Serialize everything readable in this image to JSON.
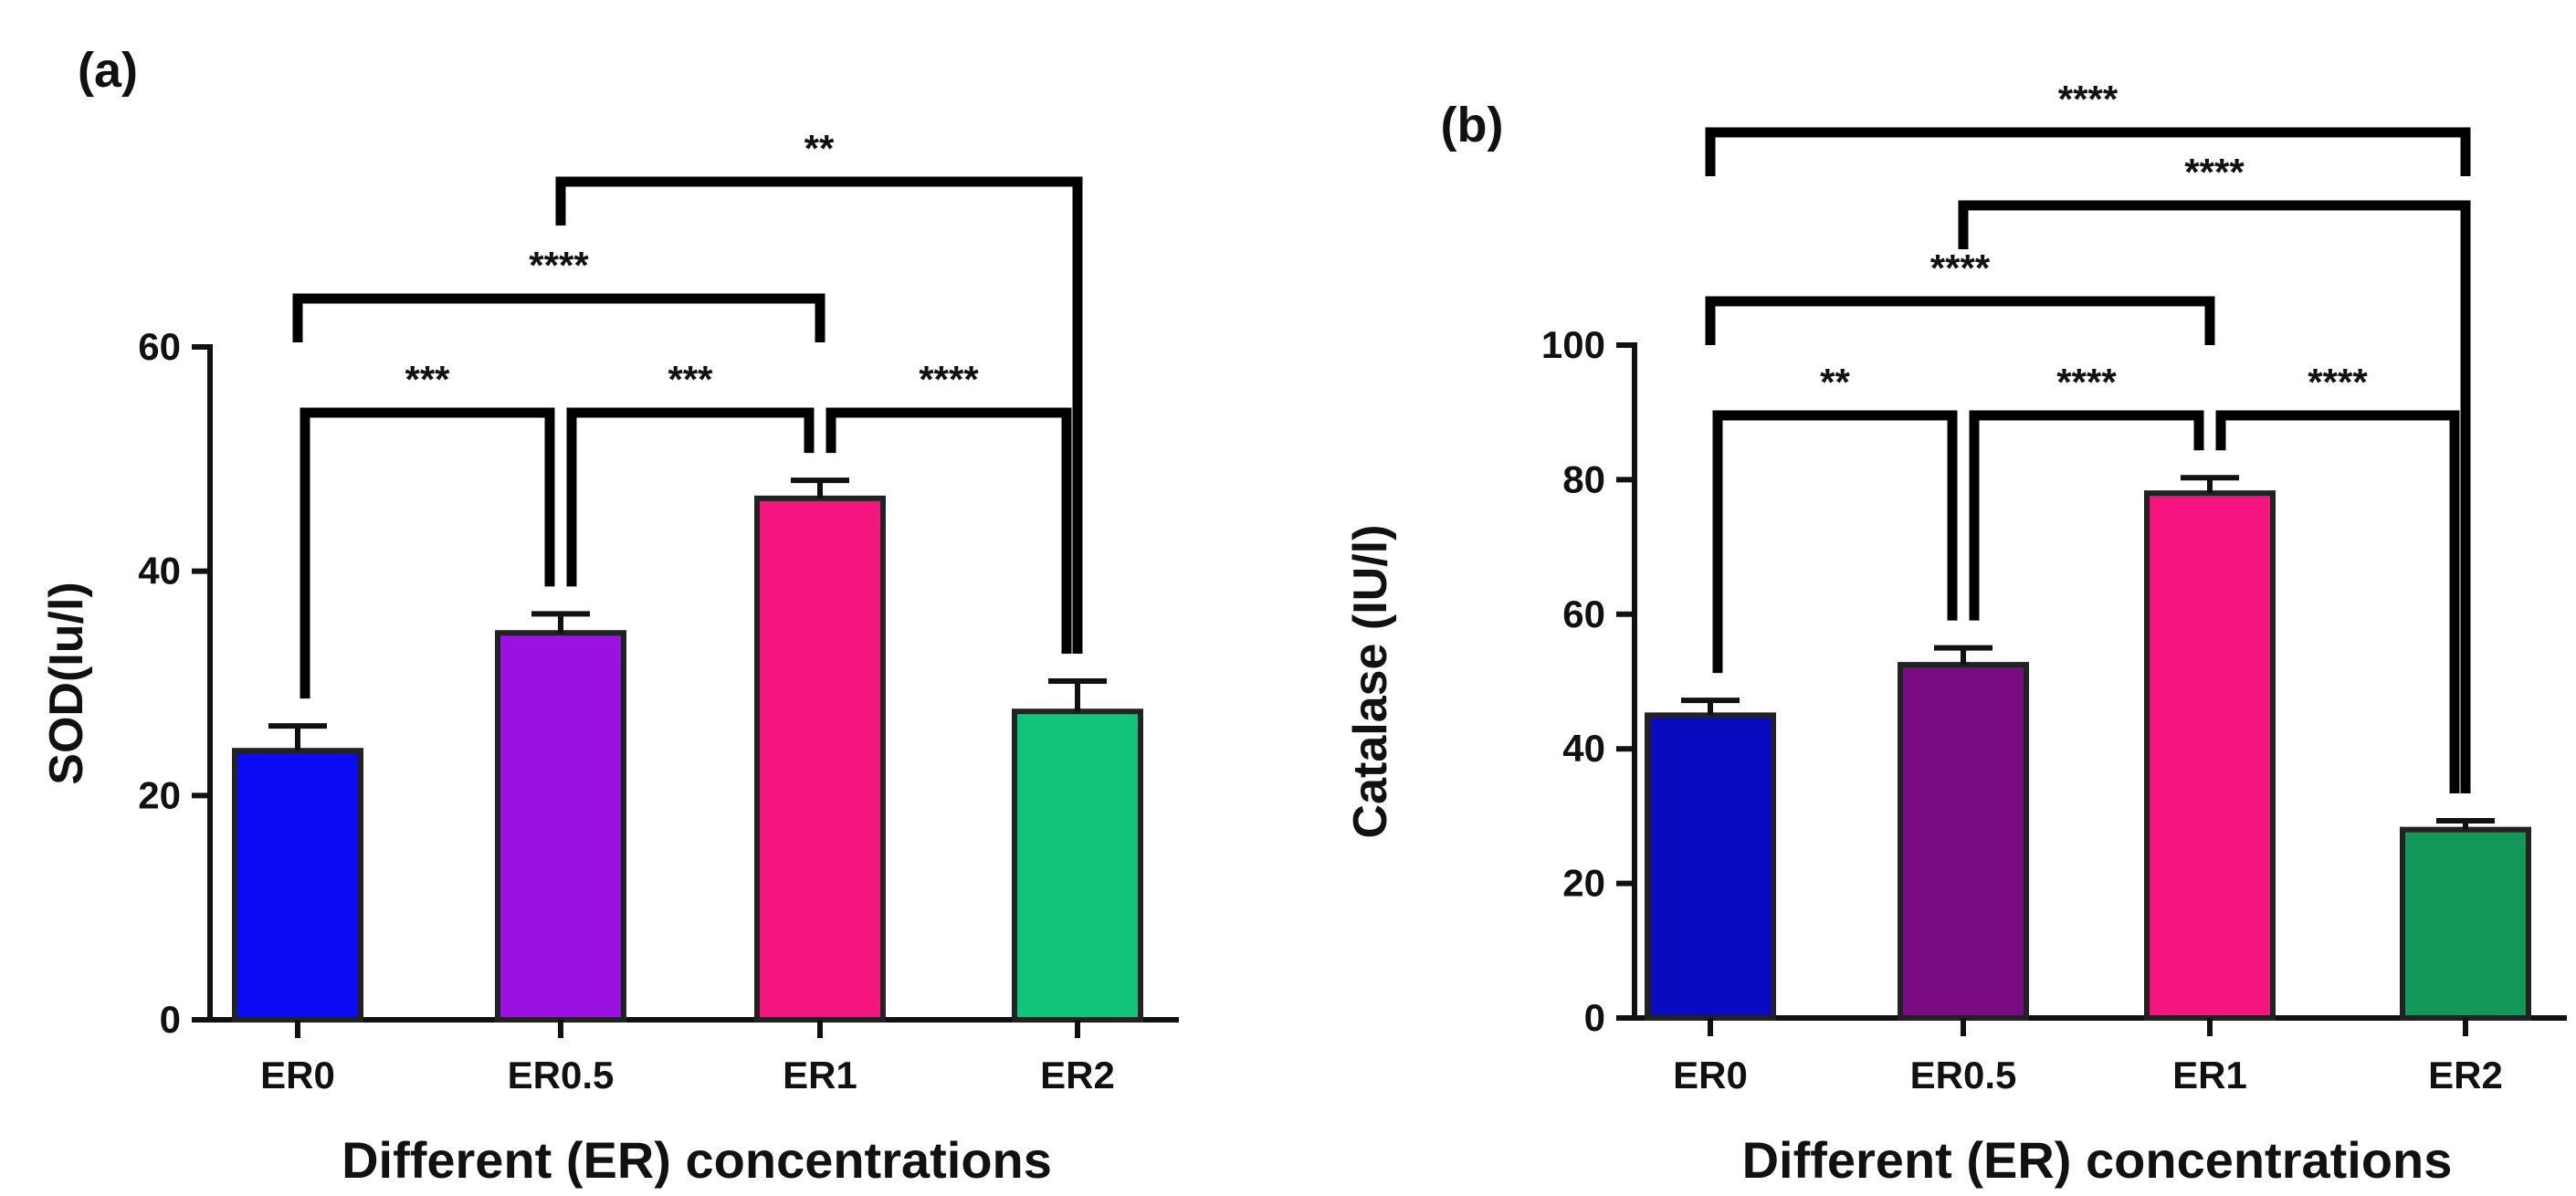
{
  "charts": [
    {
      "panel_label": "(a)",
      "type": "bar",
      "ylabel": "SOD(Iu/l)",
      "xlabel": "Different (ER) concentrations",
      "yticks": [
        0,
        20,
        40,
        60
      ],
      "ylim": [
        0,
        60
      ],
      "bars": [
        {
          "category": "ER0",
          "value": 24,
          "error": 2.2,
          "color": "#0a0af5"
        },
        {
          "category": "ER0.5",
          "value": 34.5,
          "error": 1.7,
          "color": "#9a12e0"
        },
        {
          "category": "ER1",
          "value": 46.5,
          "error": 1.6,
          "color": "#f5157e"
        },
        {
          "category": "ER2",
          "value": 27.5,
          "error": 2.7,
          "color": "#11c47c"
        }
      ],
      "comparisons": [
        {
          "from": 0,
          "to": 1,
          "label": "***"
        },
        {
          "from": 1,
          "to": 2,
          "label": "***"
        },
        {
          "from": 2,
          "to": 3,
          "label": "****"
        },
        {
          "from": 0,
          "to": 2,
          "label": "****"
        },
        {
          "from": 1,
          "to": 3,
          "label": "**"
        }
      ]
    },
    {
      "panel_label": "(b)",
      "type": "bar",
      "ylabel": "Catalase (IU/l)",
      "xlabel": "Different (ER) concentrations",
      "yticks": [
        0,
        20,
        40,
        60,
        80,
        100
      ],
      "ylim": [
        0,
        100
      ],
      "bars": [
        {
          "category": "ER0",
          "value": 45,
          "error": 2.2,
          "color": "#0a0ac0"
        },
        {
          "category": "ER0.5",
          "value": 52.5,
          "error": 2.5,
          "color": "#7a0b82"
        },
        {
          "category": "ER1",
          "value": 78,
          "error": 2.3,
          "color": "#f5157e"
        },
        {
          "category": "ER2",
          "value": 28,
          "error": 1.3,
          "color": "#13985a"
        }
      ],
      "comparisons": [
        {
          "from": 0,
          "to": 1,
          "label": "**"
        },
        {
          "from": 1,
          "to": 2,
          "label": "****"
        },
        {
          "from": 2,
          "to": 3,
          "label": "****"
        },
        {
          "from": 0,
          "to": 2,
          "label": "****"
        },
        {
          "from": 1,
          "to": 3,
          "label": "****"
        },
        {
          "from": 0,
          "to": 3,
          "label": "****"
        }
      ]
    }
  ],
  "chart_data": [
    {
      "type": "bar",
      "title": "(a)",
      "categories": [
        "ER0",
        "ER0.5",
        "ER1",
        "ER2"
      ],
      "values": [
        24,
        34.5,
        46.5,
        27.5
      ],
      "errors": [
        2.2,
        1.7,
        1.6,
        2.7
      ],
      "xlabel": "Different (ER) concentrations",
      "ylabel": "SOD(Iu/l)",
      "ylim": [
        0,
        60
      ],
      "yticks": [
        0,
        20,
        40,
        60
      ],
      "significance": [
        {
          "pair": [
            "ER0",
            "ER0.5"
          ],
          "label": "***"
        },
        {
          "pair": [
            "ER0.5",
            "ER1"
          ],
          "label": "***"
        },
        {
          "pair": [
            "ER1",
            "ER2"
          ],
          "label": "****"
        },
        {
          "pair": [
            "ER0",
            "ER1"
          ],
          "label": "****"
        },
        {
          "pair": [
            "ER0.5",
            "ER2"
          ],
          "label": "**"
        }
      ]
    },
    {
      "type": "bar",
      "title": "(b)",
      "categories": [
        "ER0",
        "ER0.5",
        "ER1",
        "ER2"
      ],
      "values": [
        45,
        52.5,
        78,
        28
      ],
      "errors": [
        2.2,
        2.5,
        2.3,
        1.3
      ],
      "xlabel": "Different (ER) concentrations",
      "ylabel": "Catalase (IU/l)",
      "ylim": [
        0,
        100
      ],
      "yticks": [
        0,
        20,
        40,
        60,
        80,
        100
      ],
      "significance": [
        {
          "pair": [
            "ER0",
            "ER0.5"
          ],
          "label": "**"
        },
        {
          "pair": [
            "ER0.5",
            "ER1"
          ],
          "label": "****"
        },
        {
          "pair": [
            "ER1",
            "ER2"
          ],
          "label": "****"
        },
        {
          "pair": [
            "ER0",
            "ER1"
          ],
          "label": "****"
        },
        {
          "pair": [
            "ER0.5",
            "ER2"
          ],
          "label": "****"
        },
        {
          "pair": [
            "ER0",
            "ER2"
          ],
          "label": "****"
        }
      ]
    }
  ]
}
